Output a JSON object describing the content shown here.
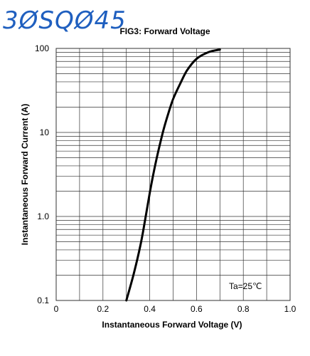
{
  "part_number": "3ØSQØ45",
  "chart_data": {
    "type": "line",
    "title": "FIG3: Forward Voltage",
    "xlabel": "Instantaneous Forward Voltage (V)",
    "ylabel": "Instantaneous Forward Current (A)",
    "xlim": [
      0,
      1.0
    ],
    "ylim": [
      0.1,
      100
    ],
    "yscale": "log",
    "xticks": [
      0,
      0.2,
      0.4,
      0.6,
      0.8,
      1.0
    ],
    "xtick_labels": [
      "0",
      "0.2",
      "0.4",
      "0.6",
      "0.8",
      "1.0"
    ],
    "yticks": [
      0.1,
      1.0,
      10,
      100
    ],
    "ytick_labels": [
      "0.1",
      "1.0",
      "10",
      "100"
    ],
    "grid": true,
    "annotation": "Ta=25℃",
    "series": [
      {
        "x": [
          0.3,
          0.33,
          0.36,
          0.38,
          0.4,
          0.42,
          0.44,
          0.46,
          0.48,
          0.5,
          0.53,
          0.56,
          0.6,
          0.65,
          0.7
        ],
        "y": [
          0.1,
          0.2,
          0.45,
          0.9,
          1.9,
          3.7,
          6.6,
          11,
          17,
          25,
          38,
          55,
          75,
          90,
          97
        ]
      }
    ]
  }
}
